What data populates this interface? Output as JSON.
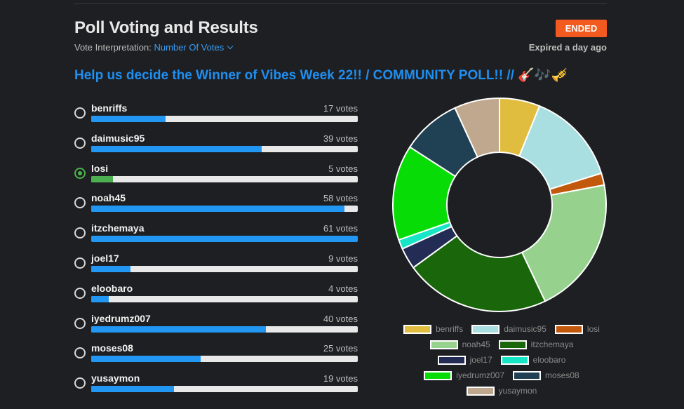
{
  "header": {
    "title": "Poll Voting and Results",
    "interpretation_label": "Vote Interpretation:",
    "interpretation_value": "Number Of Votes",
    "status_badge": "ENDED",
    "expired_text": "Expired a day ago"
  },
  "question": "Help us decide the Winner of Vibes Week 22!! / COMMUNITY POLL!! // 🎸🎶🎺",
  "options": [
    {
      "name": "benriffs",
      "votes_label": "17 votes",
      "votes": 17,
      "selected": false
    },
    {
      "name": "daimusic95",
      "votes_label": "39 votes",
      "votes": 39,
      "selected": false
    },
    {
      "name": "losi",
      "votes_label": "5 votes",
      "votes": 5,
      "selected": true
    },
    {
      "name": "noah45",
      "votes_label": "58 votes",
      "votes": 58,
      "selected": false
    },
    {
      "name": "itzchemaya",
      "votes_label": "61 votes",
      "votes": 61,
      "selected": false
    },
    {
      "name": "joel17",
      "votes_label": "9 votes",
      "votes": 9,
      "selected": false
    },
    {
      "name": "eloobaro",
      "votes_label": "4 votes",
      "votes": 4,
      "selected": false
    },
    {
      "name": "iyedrumz007",
      "votes_label": "40 votes",
      "votes": 40,
      "selected": false
    },
    {
      "name": "moses08",
      "votes_label": "25 votes",
      "votes": 25,
      "selected": false
    },
    {
      "name": "yusaymon",
      "votes_label": "19 votes",
      "votes": 19,
      "selected": false
    }
  ],
  "colors": {
    "accent": "#1f8ff0",
    "bar_fill": "#2196f3",
    "bar_fill_selected": "#4caf50",
    "ended_badge": "#f35a1f"
  },
  "chart_data": {
    "type": "pie",
    "donut": true,
    "categories": [
      "benriffs",
      "daimusic95",
      "losi",
      "noah45",
      "itzchemaya",
      "joel17",
      "eloobaro",
      "iyedrumz007",
      "moses08",
      "yusaymon"
    ],
    "values": [
      17,
      39,
      5,
      58,
      61,
      9,
      4,
      40,
      25,
      19
    ],
    "colors": [
      "#e1bd3f",
      "#a9dfe0",
      "#c1580c",
      "#96d28d",
      "#1a660b",
      "#222c54",
      "#16e6c6",
      "#07dc07",
      "#204154",
      "#bfa88d"
    ],
    "legend_position": "bottom"
  },
  "legend_rows": [
    [
      0,
      1,
      2
    ],
    [
      3,
      4
    ],
    [
      5,
      6
    ],
    [
      7,
      8
    ],
    [
      9
    ]
  ]
}
